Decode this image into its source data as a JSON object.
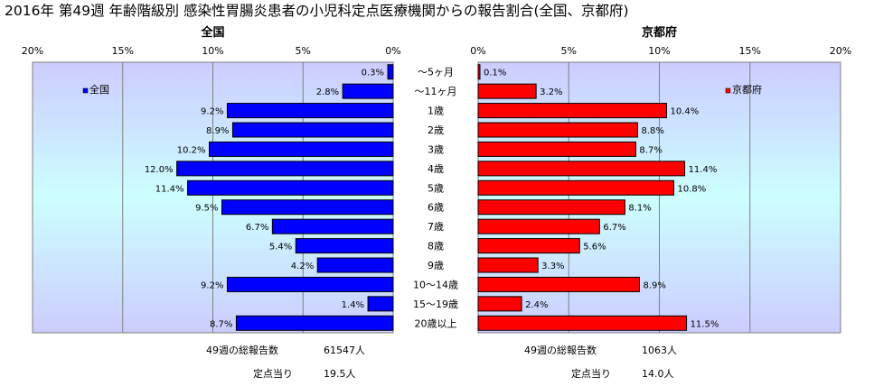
{
  "chart_data": {
    "type": "bar",
    "title": "2016年 第49週 年齢階級別 感染性胃腸炎患者の小児科定点医療機関からの報告割合(全国、京都府)",
    "categories": [
      "～5ヶ月",
      "～11ヶ月",
      "1歳",
      "2歳",
      "3歳",
      "4歳",
      "5歳",
      "6歳",
      "7歳",
      "8歳",
      "9歳",
      "10～14歳",
      "15～19歳",
      "20歳以上"
    ],
    "axis_ticks": [
      "0%",
      "5%",
      "10%",
      "15%",
      "20%"
    ],
    "xlim": [
      0,
      20
    ],
    "panels": [
      {
        "name": "全国",
        "legend": "全国",
        "color": "#0000ff",
        "values": [
          0.3,
          2.8,
          9.2,
          8.9,
          10.2,
          12.0,
          11.4,
          9.5,
          6.7,
          5.4,
          4.2,
          9.2,
          1.4,
          8.7
        ],
        "labels": [
          "0.3%",
          "2.8%",
          "9.2%",
          "8.9%",
          "10.2%",
          "12.0%",
          "11.4%",
          "9.5%",
          "6.7%",
          "5.4%",
          "4.2%",
          "9.2%",
          "1.4%",
          "8.7%"
        ],
        "total_label": "49週の総報告数",
        "total_value": "61547人",
        "per_site_label": "定点当り",
        "per_site_value": "19.5人"
      },
      {
        "name": "京都府",
        "legend": "京都府",
        "color": "#ff0000",
        "values": [
          0.1,
          3.2,
          10.4,
          8.8,
          8.7,
          11.4,
          10.8,
          8.1,
          6.7,
          5.6,
          3.3,
          8.9,
          2.4,
          11.5
        ],
        "labels": [
          "0.1%",
          "3.2%",
          "10.4%",
          "8.8%",
          "8.7%",
          "11.4%",
          "10.8%",
          "8.1%",
          "6.7%",
          "5.6%",
          "3.3%",
          "8.9%",
          "2.4%",
          "11.5%"
        ],
        "total_label": "49週の総報告数",
        "total_value": "1063人",
        "per_site_label": "定点当り",
        "per_site_value": "14.0人"
      }
    ],
    "grid": true,
    "legend_position": "top-left"
  }
}
